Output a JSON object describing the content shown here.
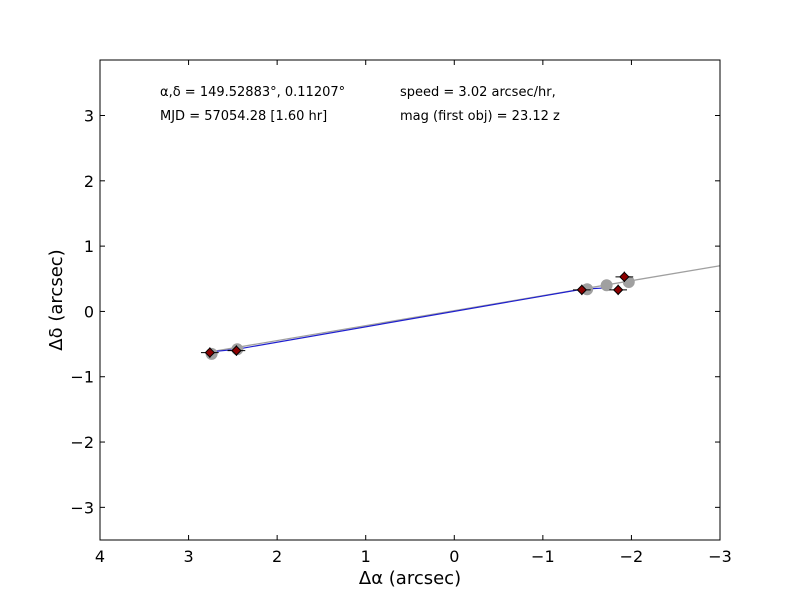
{
  "chart_data": {
    "type": "scatter",
    "xlabel": "Δα (arcsec)",
    "ylabel": "Δδ (arcsec)",
    "xlim": [
      4,
      -3
    ],
    "ylim": [
      -3.5,
      3.85
    ],
    "x_ticks": [
      4,
      3,
      2,
      1,
      0,
      -1,
      -2,
      -3
    ],
    "y_ticks": [
      3,
      2,
      1,
      0,
      -1,
      -2,
      -3
    ],
    "x_tick_labels": [
      "4",
      "3",
      "2",
      "1",
      "0",
      "−1",
      "−2",
      "−3"
    ],
    "y_tick_labels": [
      "3",
      "2",
      "1",
      "0",
      "−1",
      "−2",
      "−3"
    ],
    "grid": false,
    "annotations": {
      "coords": "α,δ = 149.52883°, 0.11207°",
      "mjd": "MJD = 57054.28 [1.60 hr]",
      "speed": "speed = 3.02 arcsec/hr,",
      "mag": "mag (first obj) = 23.12 z"
    },
    "fit_line": {
      "color": "#a0a0a0",
      "points": [
        [
          2.8,
          -0.63
        ],
        [
          -3.0,
          0.7
        ]
      ]
    },
    "motion_line": {
      "color": "#1f1fcf",
      "points": [
        [
          2.76,
          -0.62
        ],
        [
          2.46,
          -0.58
        ],
        [
          -1.44,
          0.34
        ],
        [
          -1.7,
          0.36
        ]
      ]
    },
    "predicted_positions": {
      "color": "#a0a0a0",
      "x": [
        2.74,
        2.45,
        -1.5,
        -1.72,
        -1.97
      ],
      "y": [
        -0.65,
        -0.58,
        0.34,
        0.4,
        0.45
      ]
    },
    "observed_positions": {
      "color": "#8b0000",
      "edge": "#000000",
      "x": [
        2.76,
        2.46,
        -1.44,
        -1.85,
        -1.92
      ],
      "y": [
        -0.63,
        -0.6,
        0.33,
        0.33,
        0.53
      ],
      "xerr": 0.1,
      "yerr": 0.08
    }
  }
}
